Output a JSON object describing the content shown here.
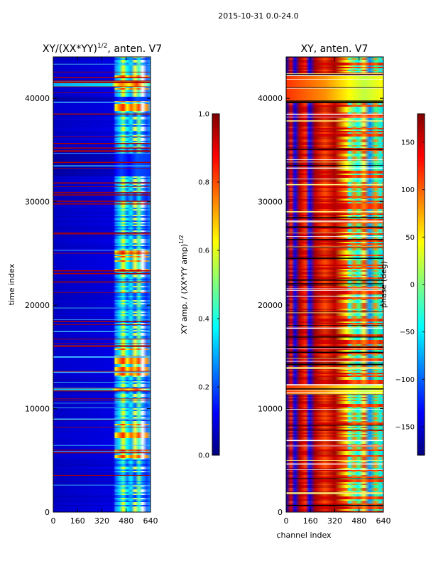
{
  "suptitle": "2015-10-31 0.0-24.0",
  "colormap": [
    "#00007f",
    "#0000ff",
    "#007fff",
    "#00ffff",
    "#7fff7f",
    "#ffff00",
    "#ff7f00",
    "#ff0000",
    "#7f0000"
  ],
  "chart_data": [
    {
      "type": "heatmap",
      "title_main": "XY/(XX*YY)",
      "title_exp": "1/2",
      "title_rest": ", anten. V7",
      "xlabel": "",
      "ylabel": "time index",
      "xlim": [
        0,
        640
      ],
      "ylim": [
        0,
        44000
      ],
      "x_ticks": [
        0,
        160,
        320,
        480,
        640
      ],
      "y_ticks": [
        0,
        10000,
        20000,
        30000,
        40000
      ],
      "colorbar": {
        "label_main": "XY amp. / (XX*YY amp)",
        "label_exp": "1/2",
        "range": [
          0.0,
          1.0
        ],
        "ticks": [
          0.0,
          0.2,
          0.4,
          0.6,
          0.8,
          1.0
        ],
        "tick_labels": [
          "0.0",
          "0.2",
          "0.4",
          "0.6",
          "0.8",
          "1.0"
        ]
      }
    },
    {
      "type": "heatmap",
      "title_main": "XY, anten. V7",
      "xlabel": "channel index",
      "ylabel": "",
      "xlim": [
        0,
        640
      ],
      "ylim": [
        0,
        44000
      ],
      "x_ticks": [
        0,
        160,
        320,
        480,
        640
      ],
      "y_ticks": [
        0,
        10000,
        20000,
        30000,
        40000
      ],
      "colorbar": {
        "label_main": "phase (deg)",
        "range": [
          -180,
          180
        ],
        "ticks": [
          -150,
          -100,
          -50,
          0,
          50,
          100,
          150
        ],
        "tick_labels": [
          "−150",
          "−100",
          "−50",
          "0",
          "50",
          "100",
          "150"
        ]
      }
    }
  ]
}
